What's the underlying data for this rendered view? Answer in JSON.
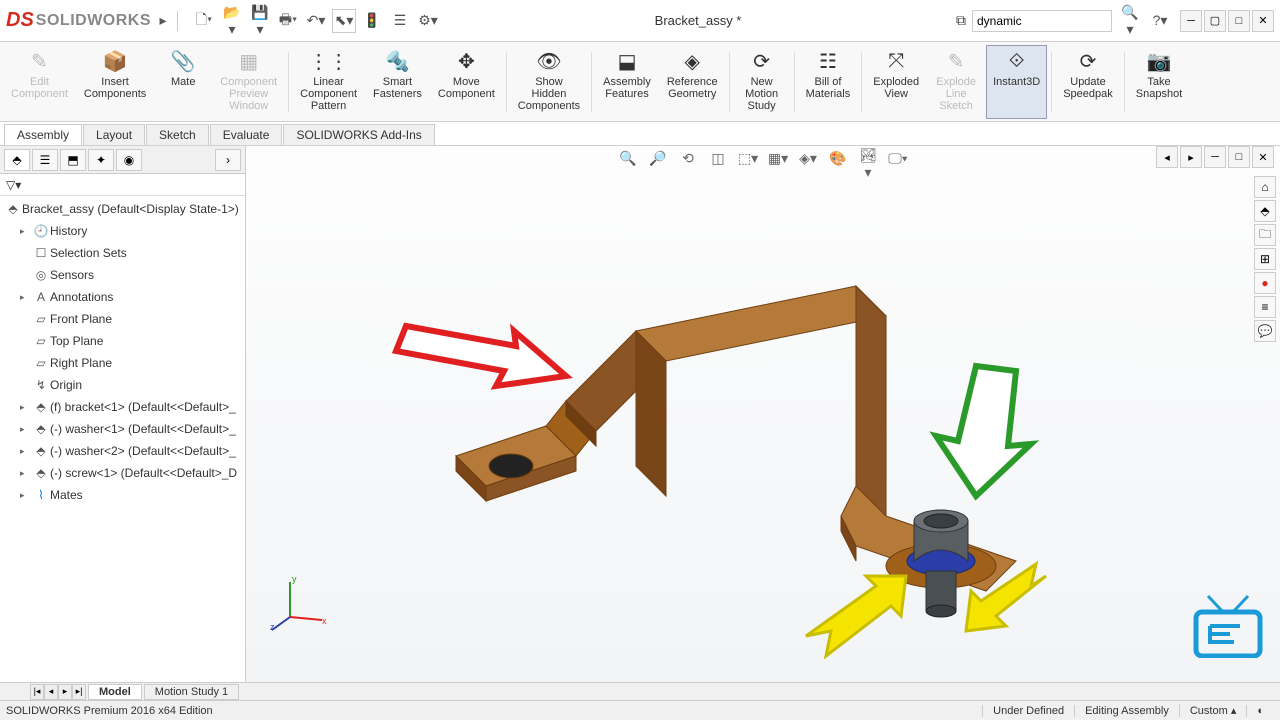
{
  "app": {
    "name": "SOLIDWORKS",
    "docTitle": "Bracket_assy *",
    "searchHint": "dynamic"
  },
  "titleToolbar": {
    "new": "New",
    "open": "Open",
    "save": "Save",
    "print": "Print",
    "undo": "Undo",
    "select": "Select",
    "rebuild": "Rebuild",
    "options": "Options"
  },
  "ribbon": {
    "editComponent": "Edit\nComponent",
    "insertComponents": "Insert\nComponents",
    "mate": "Mate",
    "previewWindow": "Component\nPreview\nWindow",
    "linearPattern": "Linear\nComponent\nPattern",
    "smartFasteners": "Smart\nFasteners",
    "moveComponent": "Move\nComponent",
    "showHidden": "Show\nHidden\nComponents",
    "assemblyFeatures": "Assembly\nFeatures",
    "refGeometry": "Reference\nGeometry",
    "motionStudy": "New\nMotion\nStudy",
    "bom": "Bill of\nMaterials",
    "explodedView": "Exploded\nView",
    "explodeSketch": "Explode\nLine\nSketch",
    "instant3d": "Instant3D",
    "speedpak": "Update\nSpeedpak",
    "snapshot": "Take\nSnapshot"
  },
  "tabs": {
    "assembly": "Assembly",
    "layout": "Layout",
    "sketch": "Sketch",
    "evaluate": "Evaluate",
    "addins": "SOLIDWORKS Add-Ins"
  },
  "tree": {
    "root": "Bracket_assy  (Default<Display State-1>)",
    "history": "History",
    "selectionSets": "Selection Sets",
    "sensors": "Sensors",
    "annotations": "Annotations",
    "frontPlane": "Front Plane",
    "topPlane": "Top Plane",
    "rightPlane": "Right Plane",
    "origin": "Origin",
    "bracket": "(f) bracket<1> (Default<<Default>_",
    "washer1": "(-) washer<1> (Default<<Default>_",
    "washer2": "(-) washer<2> (Default<<Default>_",
    "screw": "(-) screw<1> (Default<<Default>_D",
    "mates": "Mates"
  },
  "bottomTabs": {
    "model": "Model",
    "motion": "Motion Study 1"
  },
  "status": {
    "edition": "SOLIDWORKS Premium 2016 x64 Edition",
    "underDefined": "Under Defined",
    "editing": "Editing Assembly",
    "custom": "Custom"
  },
  "style": {
    "bracketColor": "#a0601a",
    "bracketShadow": "#6e3e10",
    "screwColor": "#595e63",
    "washerColor": "#2a3da8",
    "arrowRed": "#e02020",
    "arrowGreen": "#2a9a2a",
    "arrowYellow": "#f5e400"
  }
}
